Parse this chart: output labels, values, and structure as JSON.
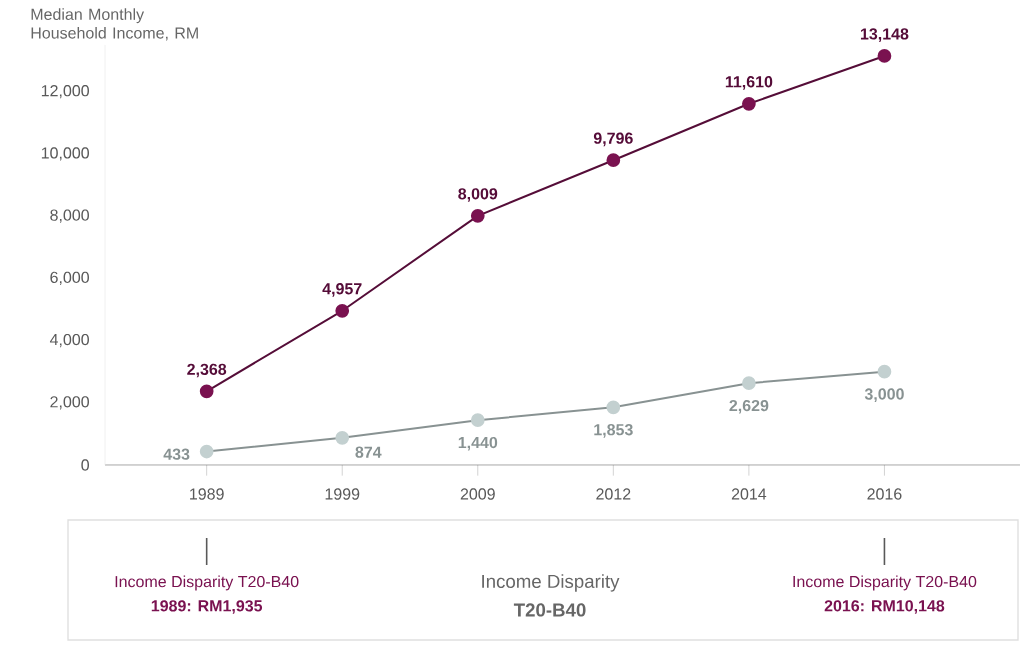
{
  "chart_data": {
    "type": "line",
    "ylabel": "Median Monthly Household Income, RM",
    "categories": [
      "1989",
      "1999",
      "2009",
      "2012",
      "2014",
      "2016"
    ],
    "series": [
      {
        "color": "#7a1250",
        "values": [
          2368,
          4957,
          8009,
          9796,
          11610,
          13148
        ],
        "value_labels": [
          "2,368",
          "4,957",
          "8,009",
          "9,796",
          "11,610",
          "13,148"
        ]
      },
      {
        "color": "#c3d0d0",
        "values": [
          433,
          874,
          1440,
          1853,
          2629,
          3000
        ],
        "value_labels": [
          "433",
          "874",
          "1,440",
          "1,853",
          "2,629",
          "3,000"
        ]
      }
    ],
    "ylim": [
      0,
      13500
    ],
    "yticks": [
      {
        "value": 0,
        "label": "0"
      },
      {
        "value": 2000,
        "label": "2,000"
      },
      {
        "value": 4000,
        "label": "4,000"
      },
      {
        "value": 6000,
        "label": "6,000"
      },
      {
        "value": 8000,
        "label": "8,000"
      },
      {
        "value": 10000,
        "label": "10,000"
      },
      {
        "value": 12000,
        "label": "12,000"
      }
    ],
    "marker": "circle",
    "line_style": "solid",
    "grid": false,
    "annotations": [
      "Income Disparity T20-B40",
      "1989: RM1,935",
      "Income Disparity",
      "T20-B40",
      "Income Disparity T20-B40",
      "2016: RM10,148"
    ]
  }
}
